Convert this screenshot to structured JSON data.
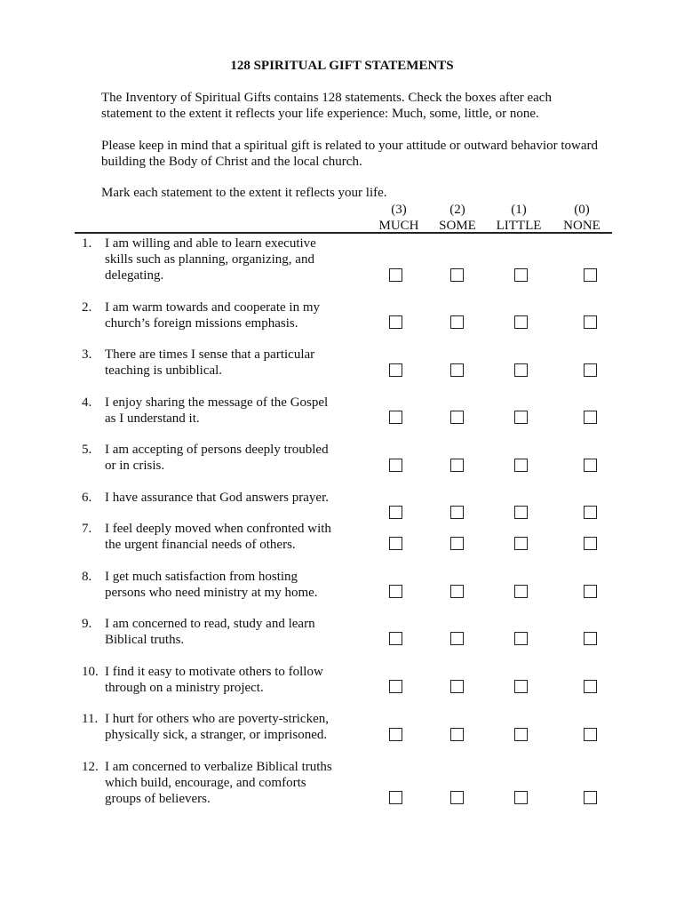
{
  "title": "128 SPIRITUAL GIFT STATEMENTS",
  "intro": [
    [
      "The Inventory of Spiritual Gifts contains 128 statements.  Check the boxes after each",
      "statement to the extent it reflects your life experience:  Much, some, little, or none."
    ],
    [
      "Please keep in mind that a spiritual gift is related to your attitude or outward behavior toward",
      "building the Body of Christ and the local church."
    ],
    [
      "Mark each statement to the extent it reflects your life."
    ]
  ],
  "columns": [
    {
      "score": "(3)",
      "label": "MUCH"
    },
    {
      "score": "(2)",
      "label": "SOME"
    },
    {
      "score": "(1)",
      "label": "LITTLE"
    },
    {
      "score": "(0)",
      "label": "NONE"
    }
  ],
  "statements": [
    {
      "num": "1.",
      "lines": [
        "I am willing and able to learn executive",
        "skills such as planning, organizing, and",
        "delegating."
      ]
    },
    {
      "num": "2.",
      "lines": [
        "I am warm towards and cooperate in my",
        "church’s foreign missions emphasis."
      ]
    },
    {
      "num": "3.",
      "lines": [
        "There are times I sense that a particular",
        "teaching is unbiblical."
      ]
    },
    {
      "num": "4.",
      "lines": [
        "I enjoy sharing the message of the Gospel",
        "as I understand it."
      ]
    },
    {
      "num": "5.",
      "lines": [
        "I am accepting of persons deeply troubled",
        "or in crisis."
      ]
    },
    {
      "num": "6.",
      "lines": [
        "I have assurance that God answers prayer."
      ]
    },
    {
      "num": "7.",
      "lines": [
        "I feel deeply moved when confronted with",
        "the urgent financial needs of others."
      ]
    },
    {
      "num": "8.",
      "lines": [
        "I get much satisfaction from hosting",
        "persons who need ministry at my home."
      ]
    },
    {
      "num": "9.",
      "lines": [
        "I am concerned to read, study and learn",
        "Biblical truths."
      ]
    },
    {
      "num": "10.",
      "lines": [
        "I find it easy to motivate others to follow",
        "through on a ministry project."
      ]
    },
    {
      "num": "11.",
      "lines": [
        "I hurt for others who are poverty-stricken,",
        "physically sick, a stranger, or imprisoned."
      ]
    },
    {
      "num": "12.",
      "lines": [
        "I am concerned to verbalize Biblical truths",
        "which build, encourage, and comforts",
        "groups of believers."
      ]
    }
  ]
}
